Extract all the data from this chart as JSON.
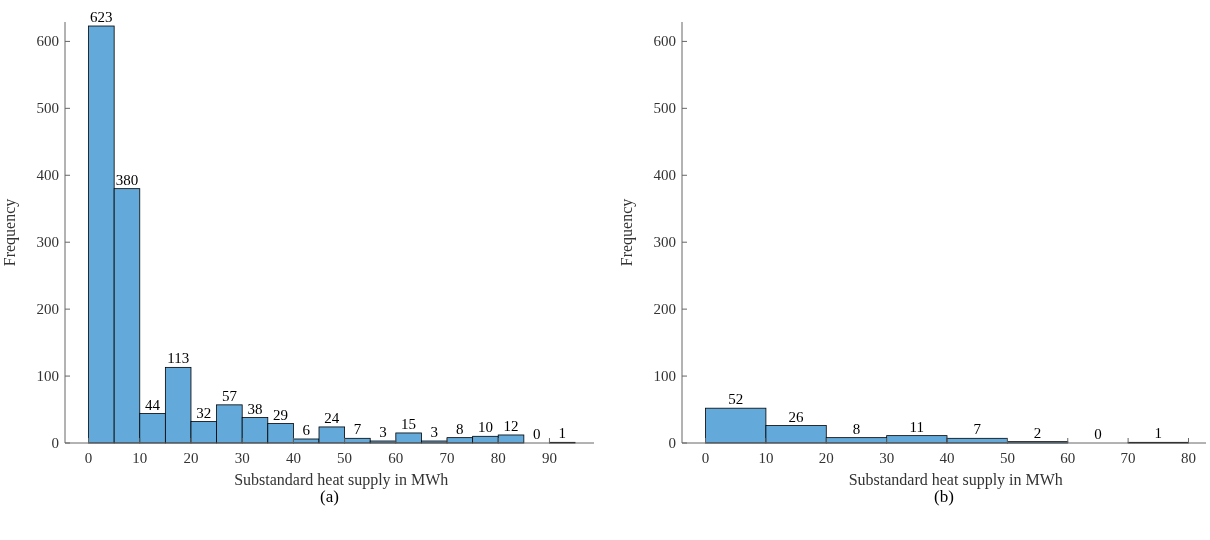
{
  "chart_data": [
    {
      "type": "histogram",
      "bins": [
        0,
        5,
        10,
        15,
        20,
        25,
        30,
        35,
        40,
        45,
        50,
        55,
        60,
        65,
        70,
        75,
        80,
        85,
        90,
        95
      ],
      "values": [
        623,
        380,
        44,
        113,
        32,
        57,
        38,
        29,
        6,
        24,
        7,
        3,
        15,
        3,
        8,
        10,
        12,
        0,
        1
      ],
      "color": "#63a9d9",
      "data_labels": true,
      "xlabel": "Substandard heat supply in MWh",
      "ylabel": "Frequency",
      "xlim": [
        -4.6,
        98.7
      ],
      "xticks": [
        0,
        10,
        20,
        30,
        40,
        50,
        60,
        70,
        80,
        90
      ],
      "ylim": [
        0,
        629
      ],
      "yticks": [
        0,
        100,
        200,
        300,
        400,
        500,
        600
      ],
      "grid": false,
      "annotations": [
        "(a)"
      ]
    },
    {
      "type": "histogram",
      "bins": [
        0,
        10,
        20,
        30,
        40,
        50,
        60,
        70,
        80
      ],
      "values": [
        52,
        26,
        8,
        11,
        7,
        2,
        0,
        1
      ],
      "color": "#63a9d9",
      "data_labels": true,
      "xlabel": "Substandard heat supply in MWh",
      "ylabel": "Frequency",
      "xlim": [
        -3.9,
        82.9
      ],
      "xticks": [
        0,
        10,
        20,
        30,
        40,
        50,
        60,
        70,
        80
      ],
      "ylim": [
        0,
        629
      ],
      "yticks": [
        0,
        100,
        200,
        300,
        400,
        500,
        600
      ],
      "grid": false,
      "annotations": [
        "(b)"
      ]
    }
  ]
}
